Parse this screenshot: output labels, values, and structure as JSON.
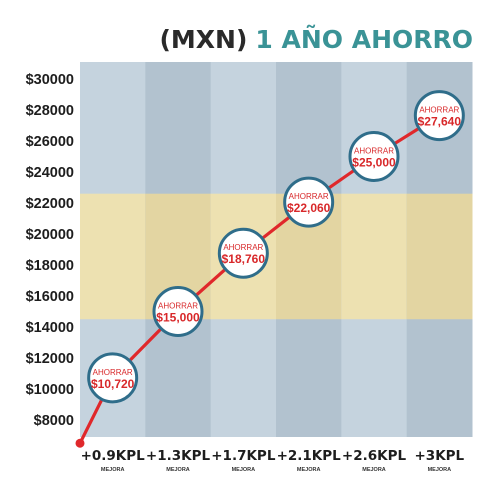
{
  "chart_data": {
    "type": "line",
    "title_prefix": "(MXN)",
    "title_main": "1 AÑO AHORRO",
    "categories": [
      "+0.9KPL",
      "+1.3KPL",
      "+1.7KPL",
      "+2.1KPL",
      "+2.6KPL",
      "+3KPL"
    ],
    "category_sublabel": "MEJORA",
    "start_value": 6500,
    "values": [
      10720,
      15000,
      18760,
      22060,
      25000,
      27640
    ],
    "point_label": "AHORRAR",
    "point_value_labels": [
      "$10,720",
      "$15,000",
      "$18,760",
      "$22,060",
      "$25,000",
      "$27,640"
    ],
    "y_ticks": [
      8000,
      10000,
      12000,
      14000,
      16000,
      18000,
      20000,
      22000,
      24000,
      26000,
      28000,
      30000
    ],
    "y_tick_labels": [
      "$8000",
      "$10000",
      "$12000",
      "$14000",
      "$16000",
      "$18000",
      "$20000",
      "$22000",
      "$24000",
      "$26000",
      "$28000",
      "$30000"
    ],
    "ylim": [
      6500,
      31000
    ],
    "highlight_band": [
      14500,
      22600
    ],
    "grid": false,
    "colors": {
      "title_prefix": "#2a2a2a",
      "title_main": "#3a9396",
      "column_light": "#c5d3de",
      "column_dark": "#b2c2cf",
      "band_light": "#ede1b1",
      "band_dark": "#e3d5a2",
      "line": "#e0282b",
      "bubble_border": "#2f6d8a",
      "bubble_fill": "#ffffff",
      "value_text": "#d8282a"
    }
  }
}
